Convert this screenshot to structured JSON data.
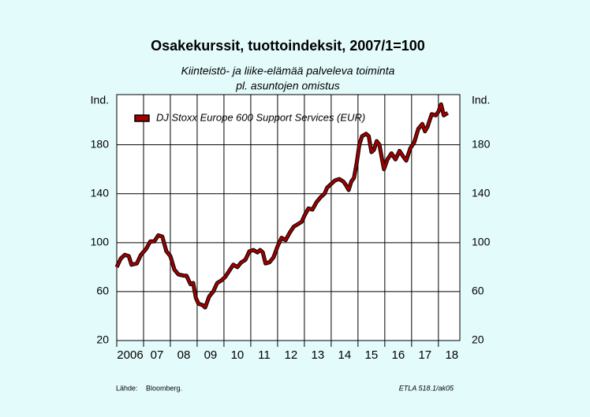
{
  "chart_data": {
    "type": "line",
    "title": "Osakekurssit, tuottoindeksit, 2007/1=100",
    "subtitle": [
      "Kiinteistö- ja liike-elämää palveleva toiminta",
      "pl. asuntojen omistus"
    ],
    "y_label": "Ind.",
    "y2_label": "Ind.",
    "x": [
      2006.0,
      2006.15,
      2006.3,
      2006.45,
      2006.55,
      2006.75,
      2006.9,
      2007.1,
      2007.25,
      2007.4,
      2007.55,
      2007.7,
      2007.85,
      2008.0,
      2008.15,
      2008.3,
      2008.5,
      2008.6,
      2008.75,
      2008.85,
      2008.95,
      2009.05,
      2009.2,
      2009.3,
      2009.45,
      2009.6,
      2009.75,
      2009.9,
      2010.05,
      2010.2,
      2010.35,
      2010.5,
      2010.65,
      2010.8,
      2010.95,
      2011.1,
      2011.25,
      2011.35,
      2011.45,
      2011.55,
      2011.7,
      2011.85,
      2012.0,
      2012.15,
      2012.3,
      2012.45,
      2012.6,
      2012.75,
      2012.9,
      2013.0,
      2013.15,
      2013.3,
      2013.45,
      2013.6,
      2013.75,
      2013.85,
      2014.0,
      2014.15,
      2014.3,
      2014.45,
      2014.55,
      2014.65,
      2014.75,
      2014.85,
      2014.95,
      2015.05,
      2015.15,
      2015.3,
      2015.4,
      2015.5,
      2015.6,
      2015.7,
      2015.8,
      2015.9,
      2015.97,
      2016.1,
      2016.25,
      2016.4,
      2016.55,
      2016.7,
      2016.8,
      2016.95,
      2017.1,
      2017.25,
      2017.4,
      2017.5,
      2017.6,
      2017.75,
      2017.9,
      2018.0,
      2018.1,
      2018.2,
      2018.35
    ],
    "series": [
      {
        "name": "DJ Stoxx Europe 600 Support Services (EUR)",
        "color": "#a00000",
        "values": [
          80,
          87,
          90,
          89,
          82,
          83,
          90,
          95,
          101,
          101,
          106,
          105,
          93,
          89,
          78,
          74,
          73,
          73,
          66,
          67,
          55,
          50,
          49,
          47,
          56,
          60,
          67,
          69,
          72,
          77,
          82,
          80,
          84,
          86,
          93,
          94,
          92,
          94,
          92,
          83,
          84,
          88,
          97,
          104,
          102,
          108,
          113,
          115,
          117,
          122,
          128,
          127,
          133,
          137,
          140,
          145,
          148,
          151,
          152,
          150,
          147,
          143,
          150,
          153,
          165,
          180,
          187,
          189,
          187,
          174,
          176,
          183,
          180,
          168,
          160,
          168,
          173,
          168,
          175,
          170,
          167,
          177,
          182,
          193,
          197,
          191,
          195,
          205,
          204,
          207,
          213,
          204,
          206
        ]
      }
    ],
    "xlim": [
      2006,
      2018.8
    ],
    "xticks": [
      {
        "value": 2006,
        "label": "2006"
      },
      {
        "value": 2007,
        "label": "07"
      },
      {
        "value": 2008,
        "label": "08"
      },
      {
        "value": 2009,
        "label": "09"
      },
      {
        "value": 2010,
        "label": "10"
      },
      {
        "value": 2011,
        "label": "11"
      },
      {
        "value": 2012,
        "label": "12"
      },
      {
        "value": 2013,
        "label": "13"
      },
      {
        "value": 2014,
        "label": "14"
      },
      {
        "value": 2015,
        "label": "15"
      },
      {
        "value": 2016,
        "label": "16"
      },
      {
        "value": 2017,
        "label": "17"
      },
      {
        "value": 2018,
        "label": "18"
      }
    ],
    "ylim": [
      20,
      221
    ],
    "yticks": [
      20,
      60,
      100,
      140,
      180
    ],
    "grid": true,
    "legend": "upper left",
    "source_label": "Lähde:",
    "source": "Bloomberg.",
    "note": "ETLA 518.1/ak05"
  }
}
